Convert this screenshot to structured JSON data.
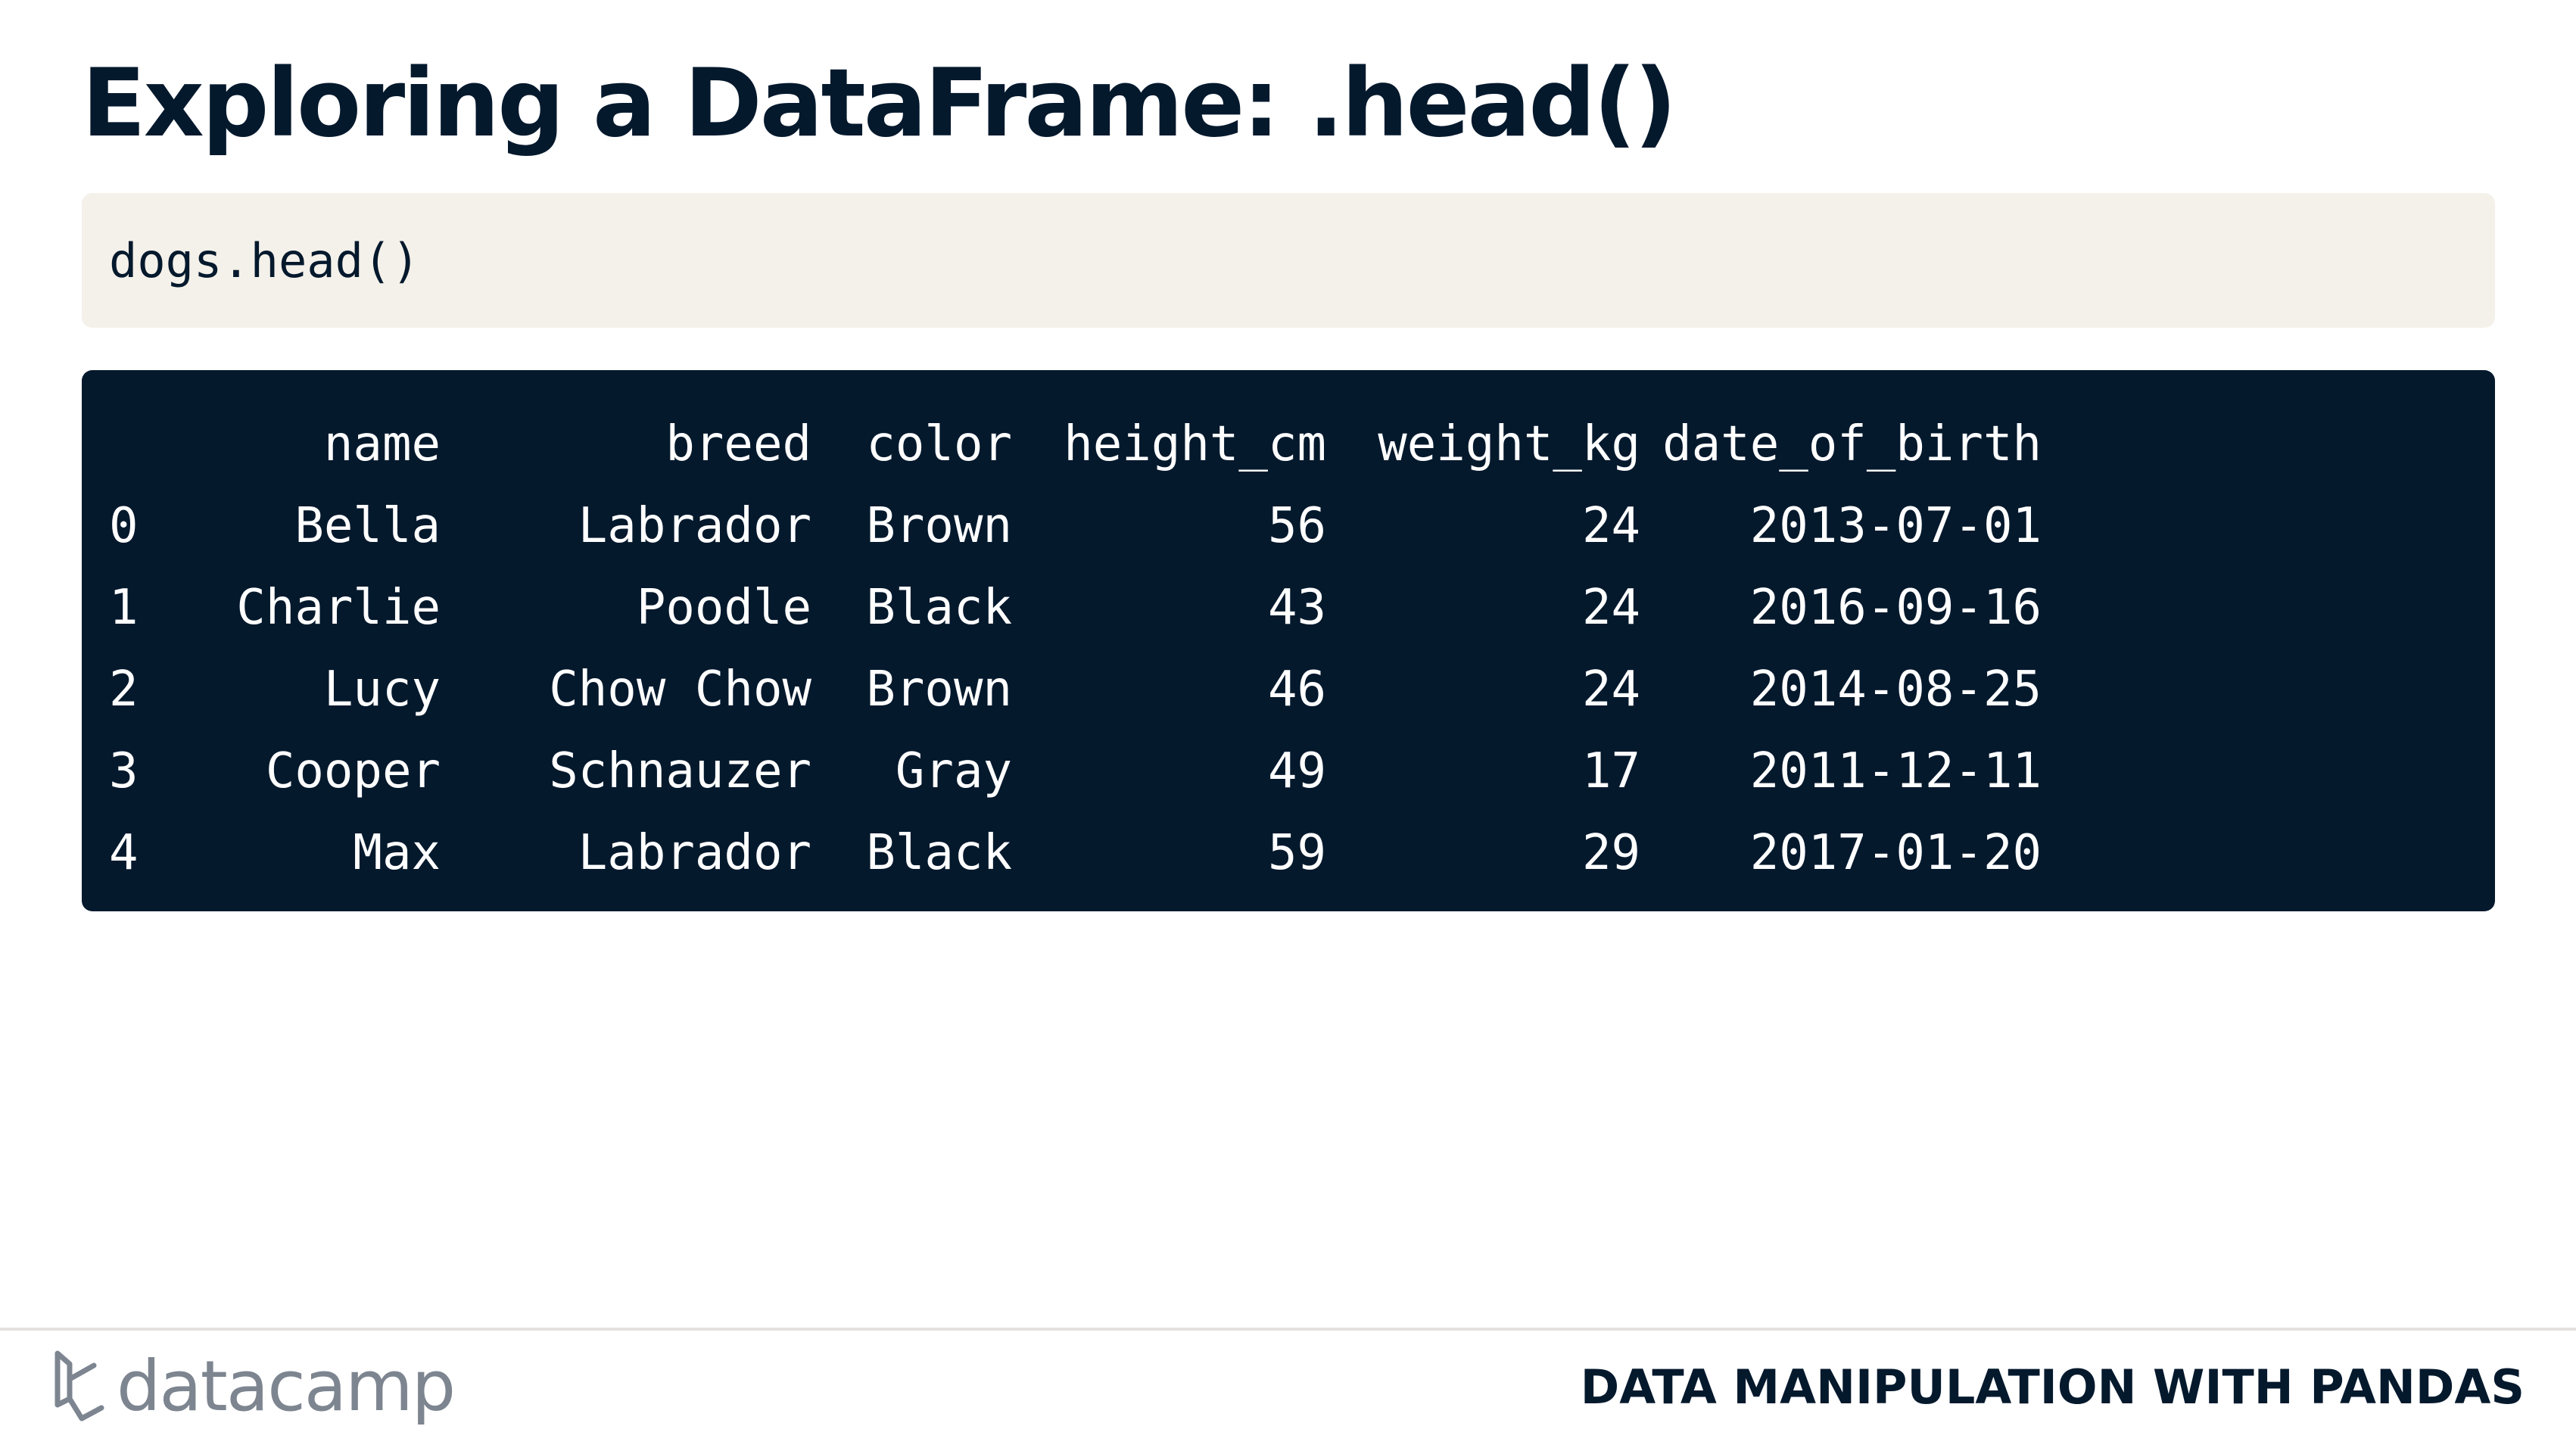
{
  "slide": {
    "title": "Exploring a DataFrame: .head()",
    "code": "dogs.head()"
  },
  "output": {
    "columns": [
      "",
      "name",
      "breed",
      "color",
      "height_cm",
      "weight_kg",
      "date_of_birth"
    ],
    "rows": [
      [
        "0",
        "Bella",
        "Labrador",
        "Brown",
        "56",
        "24",
        "2013-07-01"
      ],
      [
        "1",
        "Charlie",
        "Poodle",
        "Black",
        "43",
        "24",
        "2016-09-16"
      ],
      [
        "2",
        "Lucy",
        "Chow Chow",
        "Brown",
        "46",
        "24",
        "2014-08-25"
      ],
      [
        "3",
        "Cooper",
        "Schnauzer",
        "Gray",
        "49",
        "17",
        "2011-12-11"
      ],
      [
        "4",
        "Max",
        "Labrador",
        "Black",
        "59",
        "29",
        "2017-01-20"
      ]
    ]
  },
  "footer": {
    "logo_text": "datacamp",
    "logo_icon": "datacamp-logo-icon",
    "course_name": "DATA MANIPULATION WITH PANDAS"
  },
  "colors": {
    "navy": "#05192d",
    "code_bg": "#f4f1ea",
    "logo_gray": "#7d8590"
  }
}
